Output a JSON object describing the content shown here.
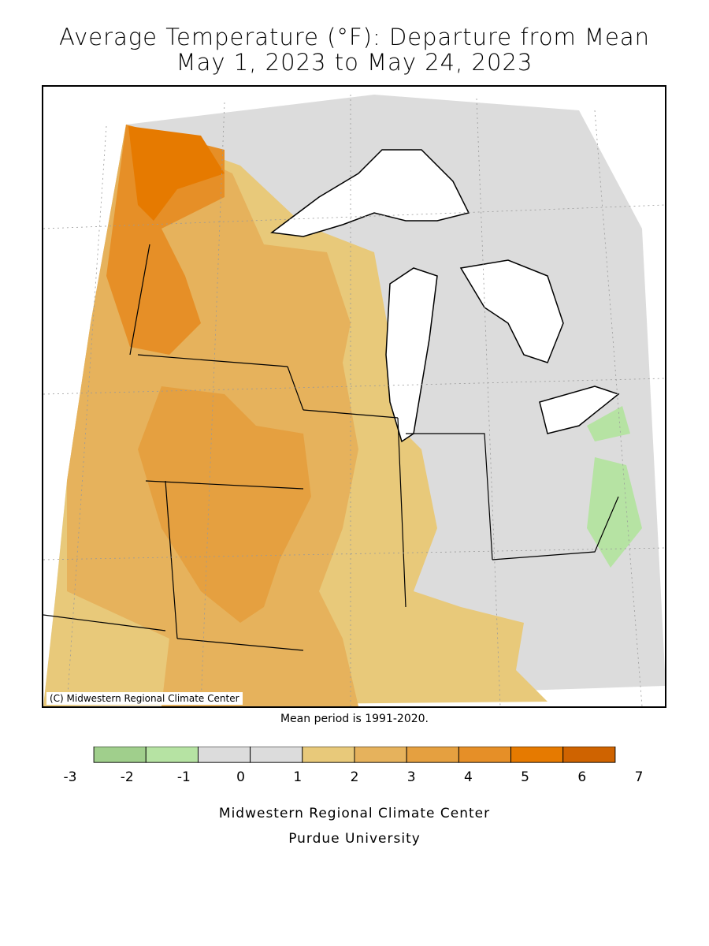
{
  "title": {
    "line1": "Average Temperature (°F): Departure from Mean",
    "line2": "May 1, 2023 to May 24, 2023"
  },
  "map": {
    "copyright": "(C) Midwestern Regional Climate Center"
  },
  "note": "Mean period is 1991-2020.",
  "legend": {
    "ticks": [
      "-3",
      "-2",
      "-1",
      "0",
      "1",
      "2",
      "3",
      "4",
      "5",
      "6",
      "7"
    ],
    "bins": [
      {
        "range": "-3 to -2",
        "color": "#a0cf8c"
      },
      {
        "range": "-2 to -1",
        "color": "#b6e3a3"
      },
      {
        "range": "-1 to 0",
        "color": "#dcdcdc"
      },
      {
        "range": "0 to 1",
        "color": "#dcdcdc"
      },
      {
        "range": "1 to 2",
        "color": "#e8c97a"
      },
      {
        "range": "2 to 3",
        "color": "#e6b25c"
      },
      {
        "range": "3 to 4",
        "color": "#e5a040"
      },
      {
        "range": "4 to 5",
        "color": "#e68f27"
      },
      {
        "range": "5 to 6",
        "color": "#e67a00"
      },
      {
        "range": "6 to 7",
        "color": "#cf6300"
      }
    ]
  },
  "footer": {
    "line1": "Midwestern Regional Climate Center",
    "line2": "Purdue University"
  }
}
